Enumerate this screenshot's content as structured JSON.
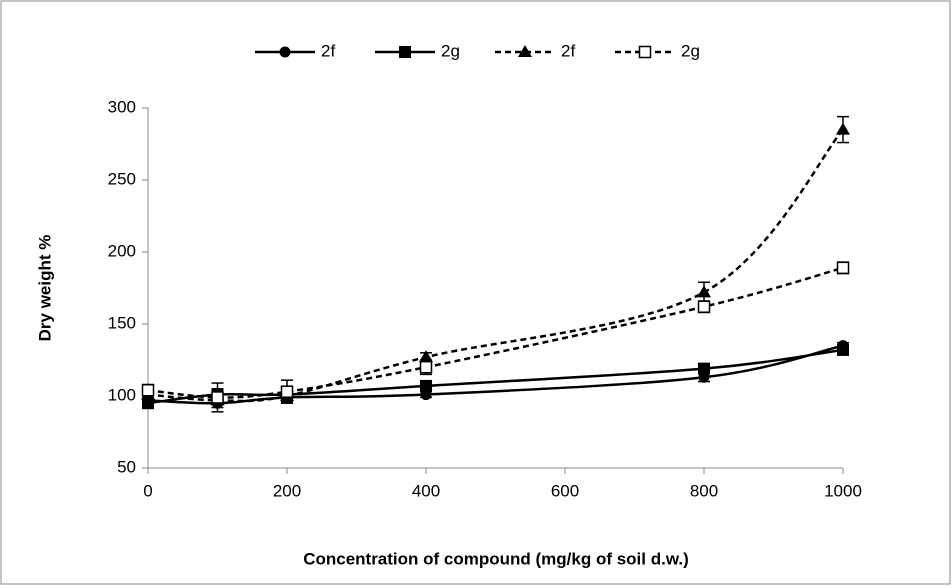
{
  "chart_data": {
    "type": "line",
    "x": [
      0,
      100,
      200,
      400,
      800,
      1000
    ],
    "xlabel": "Concentration of compound (mg/kg of soil d.w.)",
    "ylabel": "Dry weight %",
    "xlim": [
      0,
      1000
    ],
    "xticks": [
      0,
      200,
      400,
      600,
      800,
      1000
    ],
    "ylim": [
      50,
      300
    ],
    "yticks": [
      50,
      100,
      150,
      200,
      250,
      300
    ],
    "grid": false,
    "legend": "top",
    "series": [
      {
        "name": "2f",
        "color": "#000000",
        "marker": "circle",
        "dashed": false,
        "values": [
          97,
          95,
          99,
          101,
          113,
          135
        ],
        "errors": [
          4,
          3,
          3,
          2,
          3,
          2
        ]
      },
      {
        "name": "2g",
        "color": "#000000",
        "marker": "square",
        "dashed": false,
        "values": [
          95,
          101,
          101,
          107,
          119,
          132
        ],
        "errors": [
          3,
          4,
          3,
          3,
          3,
          3
        ]
      },
      {
        "name": "2f",
        "color": "#000000",
        "marker": "triangle",
        "dashed": true,
        "values": [
          101,
          97,
          100,
          127,
          172,
          285
        ],
        "errors": [
          3,
          3,
          3,
          3,
          7,
          9
        ]
      },
      {
        "name": "2g",
        "color": "#000000",
        "marker": "open-square",
        "dashed": true,
        "values": [
          104,
          99,
          103,
          120,
          162,
          189
        ],
        "errors": [
          4,
          10,
          8,
          5,
          4,
          4
        ]
      }
    ]
  }
}
